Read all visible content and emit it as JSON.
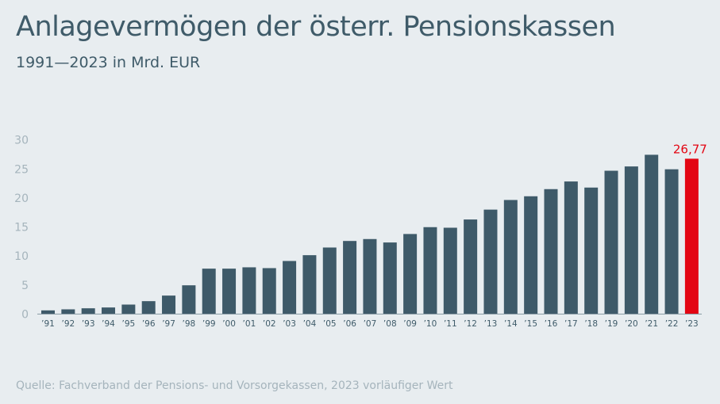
{
  "title": "Anlagevermögen der österr. Pensionskassen",
  "subtitle": "1991—2023 in Mrd. EUR",
  "source": "Quelle: Fachverband der Pensions- und Vorsorgekassen, 2023 vorläufiger Wert",
  "colors": {
    "background": "#e8edf0",
    "bar": "#3e5a69",
    "highlight": "#e30613",
    "axis_text": "#a5b4bc",
    "title": "#3f5b69"
  },
  "chart_data": {
    "type": "bar",
    "title": "Anlagevermögen der österr. Pensionskassen",
    "subtitle": "1991—2023 in Mrd. EUR",
    "categories": [
      "’91",
      "’92",
      "’93",
      "’94",
      "’95",
      "’96",
      "’97",
      "’98",
      "’99",
      "’00",
      "’01",
      "’02",
      "’03",
      "’04",
      "’05",
      "’06",
      "’07",
      "’08",
      "’09",
      "’10",
      "’11",
      "’12",
      "’13",
      "’14",
      "’15",
      "’16",
      "’17",
      "’18",
      "’19",
      "’20",
      "’21",
      "’22",
      "’23"
    ],
    "values": [
      0.64,
      0.82,
      1.0,
      1.14,
      1.64,
      2.23,
      3.19,
      4.96,
      7.83,
      7.83,
      8.06,
      7.92,
      9.15,
      10.15,
      11.47,
      12.6,
      12.93,
      12.34,
      13.8,
      14.98,
      14.88,
      16.3,
      18.0,
      19.66,
      20.3,
      21.53,
      22.85,
      21.8,
      24.7,
      25.44,
      27.45,
      24.95,
      26.77
    ],
    "highlight_index": 32,
    "data_labels": [
      {
        "category": "’23",
        "text": "26,77"
      }
    ],
    "yticks": [
      0,
      5,
      10,
      15,
      20,
      25,
      30
    ],
    "ylim": [
      0,
      30
    ],
    "xlabel": "",
    "ylabel": "",
    "grid": false,
    "legend": "none"
  }
}
